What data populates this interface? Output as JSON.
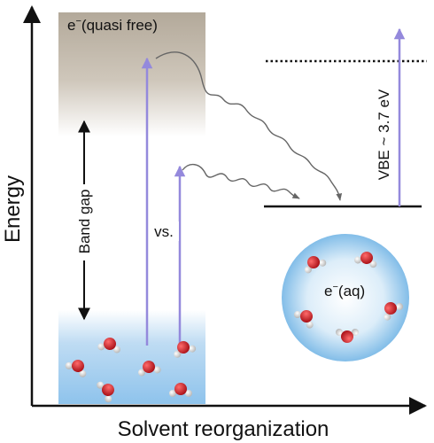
{
  "axes": {
    "y_label": "Energy",
    "x_label": "Solvent reorganization"
  },
  "labels": {
    "quasi_free_base": "e",
    "quasi_free_rest": "(quasi free)",
    "band_gap": "Band gap",
    "vs": "vs.",
    "vbe": "VBE ~ 3.7 eV",
    "eaq_base": "e",
    "eaq_rest": "(aq)",
    "superscript_minus": "−"
  },
  "colors": {
    "conduction_band": "#b3a99a",
    "valence_band": "#8ec3ec",
    "excitation_arrow": "#9489dc",
    "relaxation_path": "#666666",
    "hydrated_electron_sphere": "#7fbbe8",
    "oxygen_atom": "#c0141d",
    "hydrogen_atom": "#e6e6e6"
  }
}
